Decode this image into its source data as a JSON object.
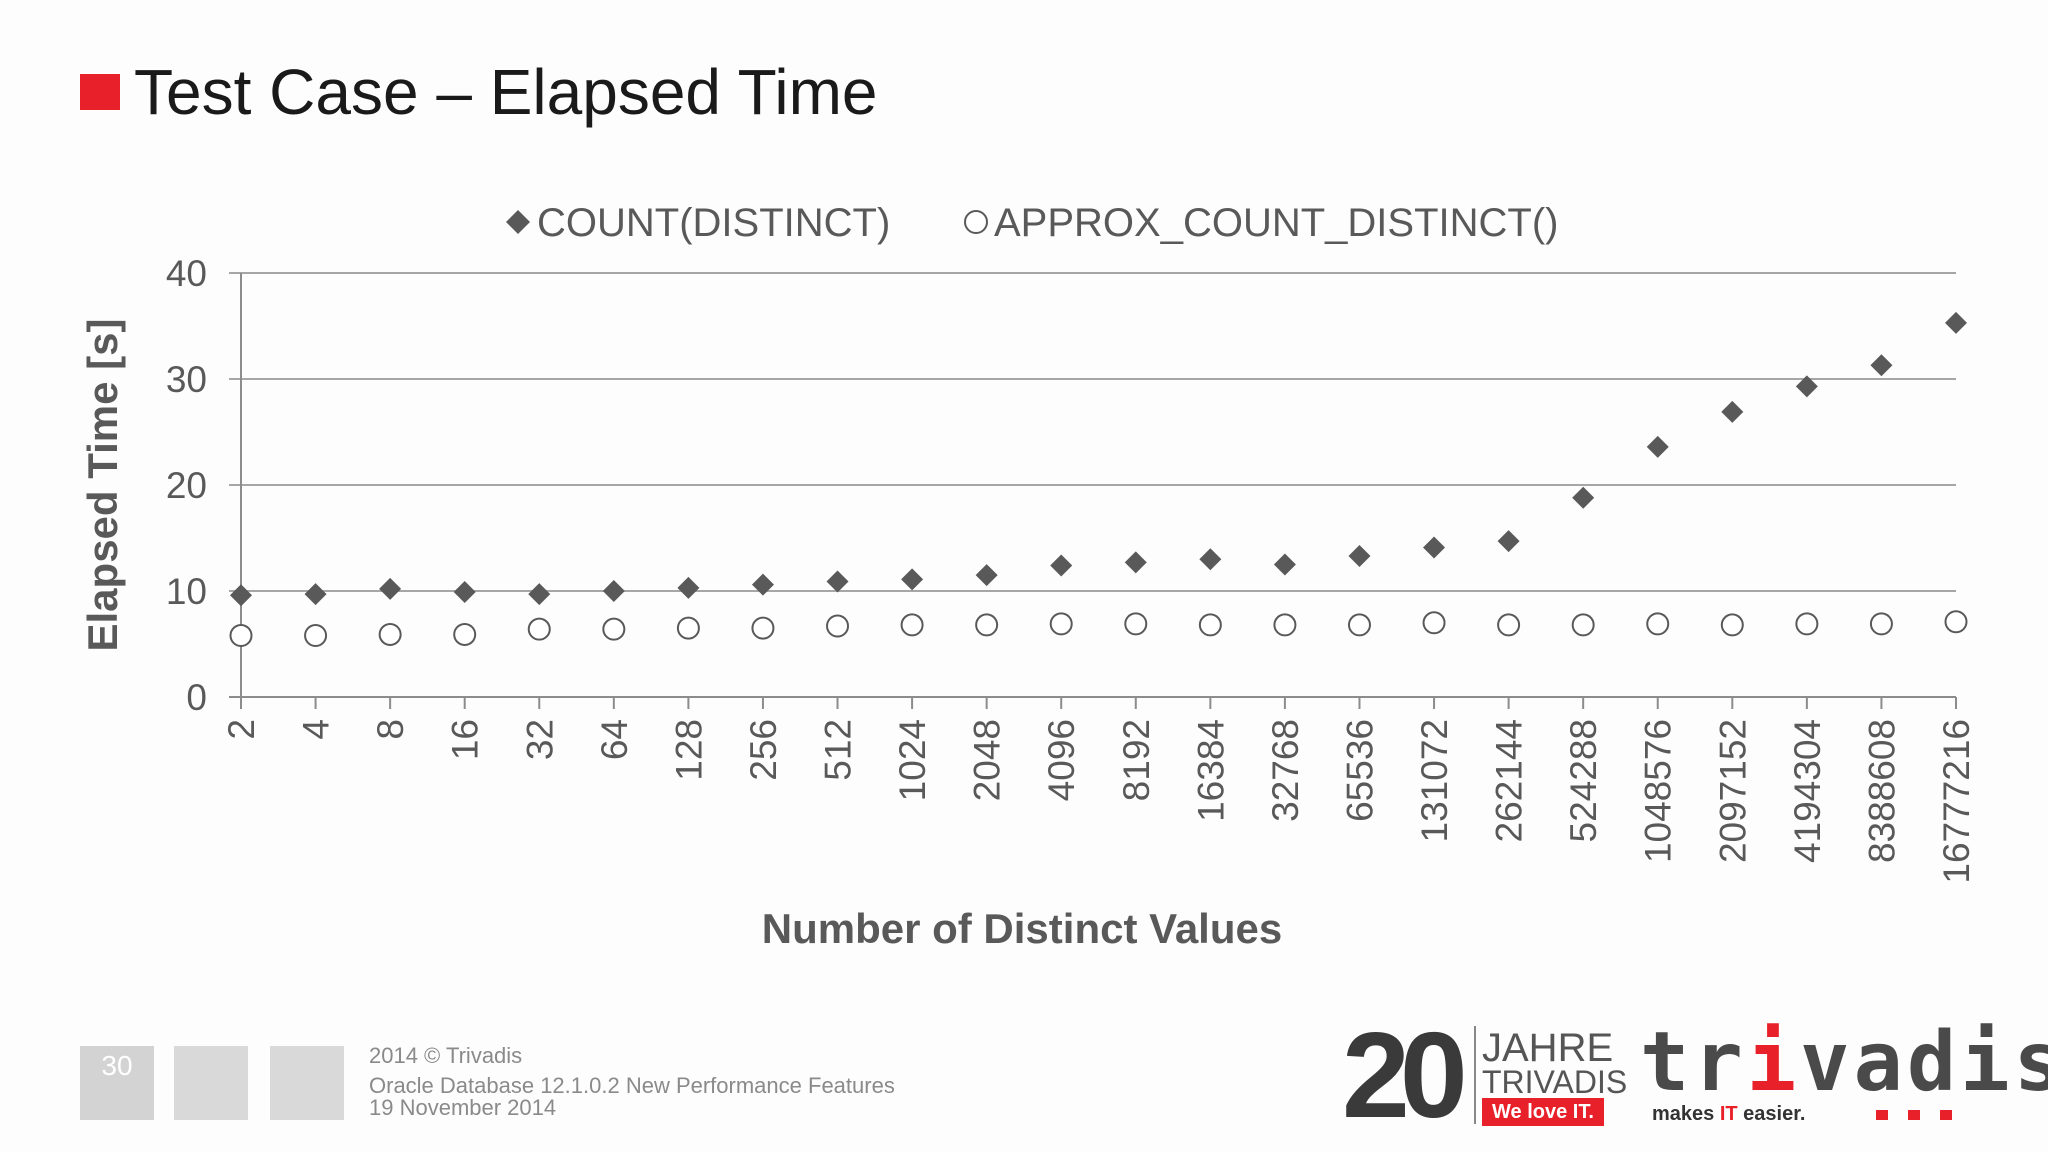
{
  "slide": {
    "title": "Test Case – Elapsed Time",
    "accent_color": "#e8202a",
    "page_number": "30",
    "footer": {
      "copyright": "2014 © Trivadis",
      "subtitle": "Oracle Database 12.1.0.2 New Performance Features",
      "date": "19 November 2014"
    },
    "logo": {
      "big_number": "20",
      "jahre": "JAHRE",
      "trivadis_small": "TRIVADIS",
      "we_love": "We love IT.",
      "brand_pre": "tr",
      "brand_i": "i",
      "brand_post": "vadis",
      "tagline_pre": "makes ",
      "tagline_it": "IT",
      "tagline_post": " easier."
    }
  },
  "chart_data": {
    "type": "scatter",
    "title": "",
    "xlabel": "Number of Distinct Values",
    "ylabel": "Elapsed Time [s]",
    "ylim": [
      0,
      40
    ],
    "yticks": [
      0,
      10,
      20,
      30,
      40
    ],
    "grid": true,
    "legend_position": "top",
    "categories": [
      "2",
      "4",
      "8",
      "16",
      "32",
      "64",
      "128",
      "256",
      "512",
      "1024",
      "2048",
      "4096",
      "8192",
      "16384",
      "32768",
      "65536",
      "131072",
      "262144",
      "524288",
      "1048576",
      "2097152",
      "4194304",
      "8388608",
      "16777216"
    ],
    "series": [
      {
        "name": "COUNT(DISTINCT)",
        "marker": "diamond",
        "color": "#595959",
        "values": [
          9.6,
          9.7,
          10.2,
          9.9,
          9.7,
          10.0,
          10.3,
          10.6,
          10.9,
          11.1,
          11.5,
          12.4,
          12.7,
          13.0,
          12.5,
          13.3,
          14.1,
          14.7,
          18.8,
          23.6,
          26.9,
          29.3,
          31.3,
          35.3
        ]
      },
      {
        "name": "APPROX_COUNT_DISTINCT()",
        "marker": "circle",
        "color": "#595959",
        "values": [
          5.8,
          5.8,
          5.9,
          5.9,
          6.4,
          6.4,
          6.5,
          6.5,
          6.7,
          6.8,
          6.8,
          6.9,
          6.9,
          6.8,
          6.8,
          6.8,
          7.0,
          6.8,
          6.8,
          6.9,
          6.8,
          6.9,
          6.9,
          7.1
        ]
      }
    ]
  }
}
